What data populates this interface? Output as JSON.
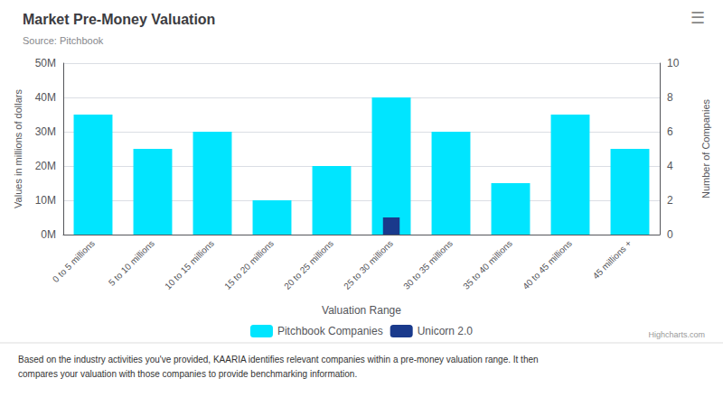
{
  "chart_data": {
    "type": "bar",
    "title": "Market Pre-Money Valuation",
    "subtitle": "Source: Pitchbook",
    "xlabel": "Valuation Range",
    "ylabel": "Values in millions of dollars",
    "y2label": "Number of Companies",
    "categories": [
      "0 to 5 millions",
      "5 to 10 millions",
      "10 to 15 millions",
      "15 to 20 millions",
      "20 to 25 millions",
      "25 to 30 millions",
      "30 to 35 millions",
      "35 to 40 millions",
      "40 to 45 millions",
      "45 millions +"
    ],
    "series": [
      {
        "name": "Pitchbook Companies",
        "color": "#00e5ff",
        "values": [
          35,
          25,
          30,
          10,
          20,
          40,
          30,
          15,
          35,
          25
        ]
      },
      {
        "name": "Unicorn 2.0",
        "color": "#1a3a8c",
        "values": [
          0,
          0,
          0,
          0,
          0,
          5,
          0,
          0,
          0,
          0
        ]
      }
    ],
    "ylim": [
      0,
      50
    ],
    "yticks": [
      {
        "value": 0,
        "label": "0M"
      },
      {
        "value": 10,
        "label": "10M"
      },
      {
        "value": 20,
        "label": "20M"
      },
      {
        "value": 30,
        "label": "30M"
      },
      {
        "value": 40,
        "label": "40M"
      },
      {
        "value": 50,
        "label": "50M"
      }
    ],
    "y2lim": [
      0,
      10
    ],
    "y2ticks": [
      0,
      2,
      4,
      6,
      8,
      10
    ],
    "grid": true,
    "legend": "bottom",
    "annotations": [
      "Based on the industry activities you've provided, KAARIA identifies relevant companies within a pre-money valuation range. It then\ncompares your valuation with those companies to provide benchmarking information.",
      "Highcharts.com",
      "☰"
    ]
  }
}
